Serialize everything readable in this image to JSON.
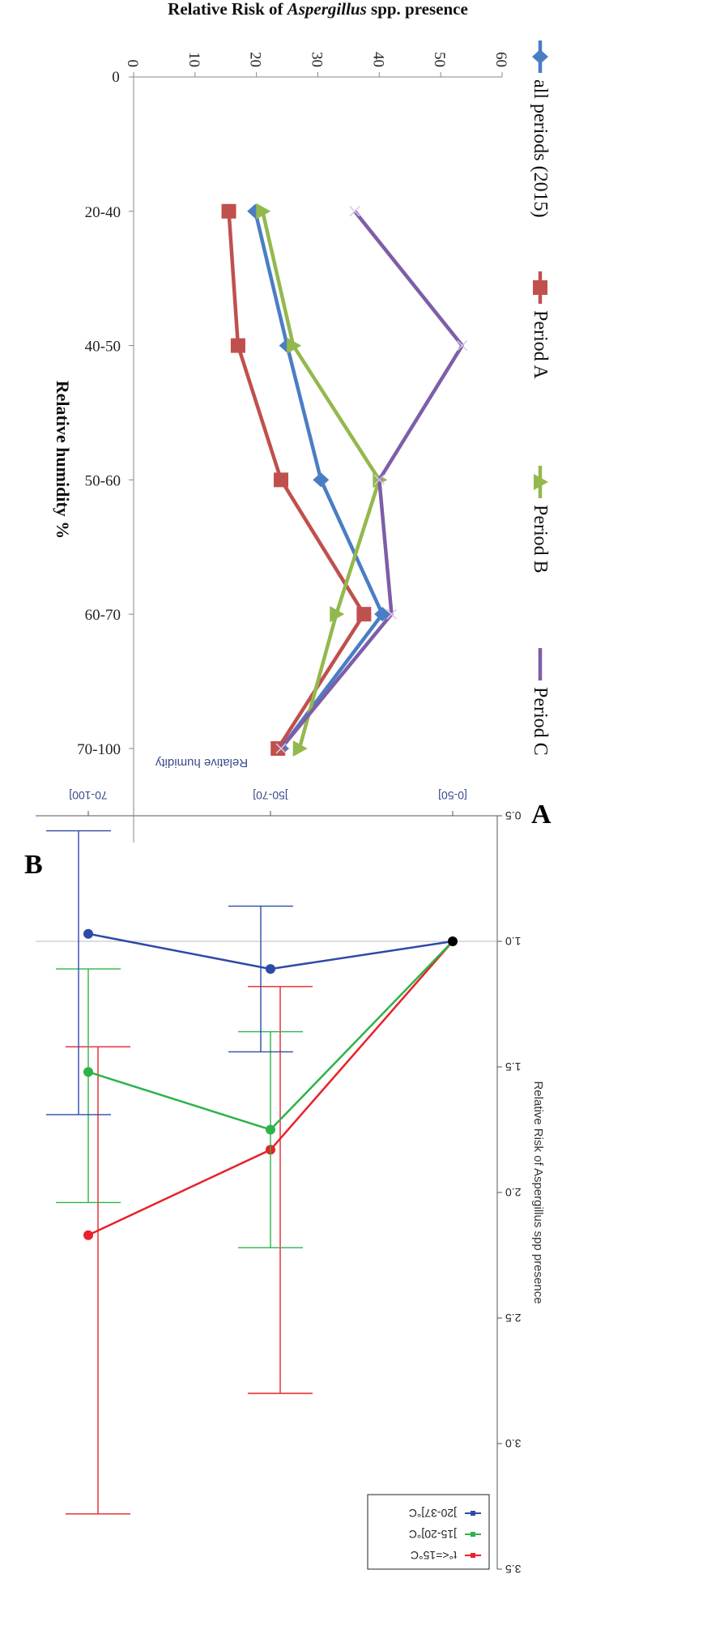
{
  "panels": {
    "A": {
      "letter": "A",
      "chart_data": {
        "type": "line",
        "categories": [
          "[0-50]",
          "]50-70]",
          "70-100]"
        ],
        "xlabel": "Relative humidity",
        "ylabel": "Relative Risk of Aspergillus spp presence",
        "ylim": [
          0.5,
          3.5
        ],
        "yticks": [
          "0.5",
          "1.0",
          "1.5",
          "2.0",
          "2.5",
          "3.0",
          "3.5"
        ],
        "reference_line": 1.0,
        "legend_position": "top-left",
        "series": [
          {
            "name": "t°<=15°C",
            "color": "#e8222a",
            "values": [
              1.0,
              1.83,
              2.17
            ],
            "ci_low": [
              null,
              1.18,
              1.42
            ],
            "ci_high": [
              null,
              2.8,
              3.28
            ]
          },
          {
            "name": "]15-20]°C",
            "color": "#2db34a",
            "values": [
              1.0,
              1.75,
              1.52
            ],
            "ci_low": [
              null,
              1.36,
              1.11
            ],
            "ci_high": [
              null,
              2.22,
              2.04
            ]
          },
          {
            "name": "]20-37]°C",
            "color": "#2e4aa8",
            "values": [
              1.0,
              1.11,
              0.97
            ],
            "ci_low": [
              null,
              0.86,
              0.56
            ],
            "ci_high": [
              null,
              1.44,
              1.69
            ]
          }
        ],
        "baseline_point_color": "#000000"
      }
    },
    "B": {
      "letter": "B",
      "chart_data": {
        "type": "line",
        "categories": [
          "20-40",
          "40-50",
          "50-60",
          "60-70",
          "70-100"
        ],
        "xlabel": "Relative humidity %",
        "ylabel_parts": [
          "Relative Risk of ",
          "Aspergillus",
          " spp. presence"
        ],
        "ylim": [
          0,
          60
        ],
        "yticks": [
          "0",
          "10",
          "20",
          "30",
          "40",
          "50",
          "60"
        ],
        "xaxis_zero_label": "0",
        "legend_position": "top",
        "series": [
          {
            "name": "all periods (2015)",
            "color": "#4a7ec4",
            "marker": "diamond",
            "values": [
              19.8,
              25,
              30.5,
              40.5,
              24
            ]
          },
          {
            "name": "Period A",
            "color": "#c0504d",
            "marker": "square",
            "values": [
              15.5,
              17,
              24,
              37.5,
              23.5
            ]
          },
          {
            "name": "Period B",
            "color": "#93b84d",
            "marker": "triangle",
            "values": [
              21,
              26,
              40,
              33,
              27
            ]
          },
          {
            "name": "Period C",
            "color": "#7d5ea8",
            "marker": "x",
            "values": [
              36,
              53.5,
              40,
              42,
              24
            ]
          }
        ]
      }
    }
  }
}
